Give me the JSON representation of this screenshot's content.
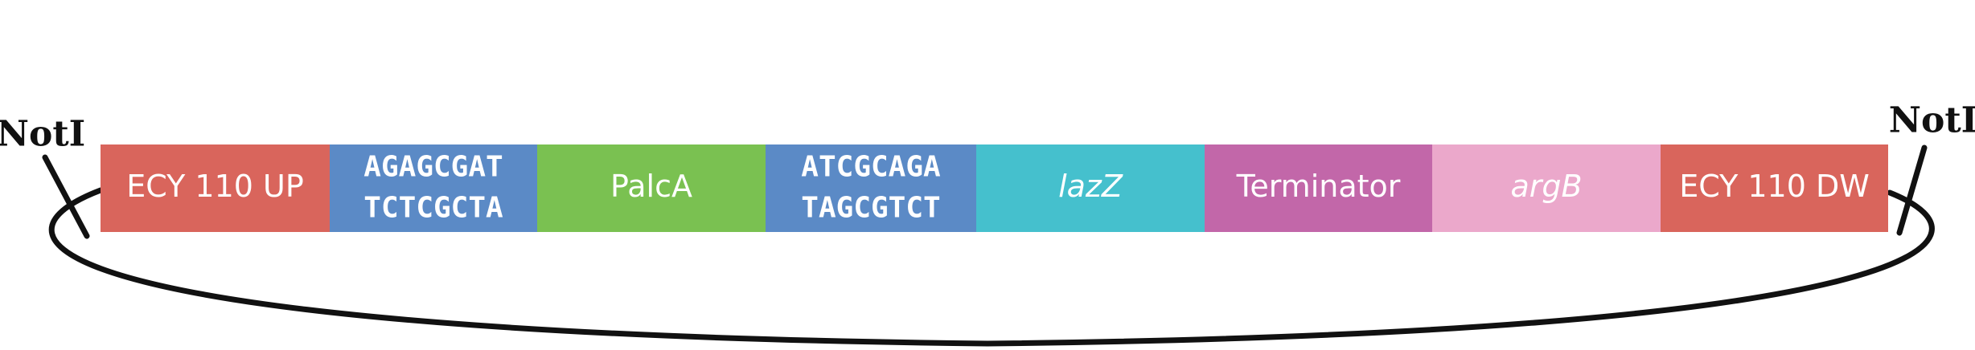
{
  "diagram": {
    "restriction_site_label": "NotI",
    "segments": [
      {
        "name": "ecy110-up",
        "label": "ECY 110 UP",
        "italic": false,
        "color": "#d9655c"
      },
      {
        "name": "linker-1",
        "lines": [
          "AGAGCGAT",
          "TCTCGCTA"
        ],
        "color": "#5b8ac6"
      },
      {
        "name": "palca",
        "label": "PalcA",
        "italic": false,
        "color": "#7ac151"
      },
      {
        "name": "linker-2",
        "lines": [
          "ATCGCAGA",
          "TAGCGTCT"
        ],
        "color": "#5b8ac6"
      },
      {
        "name": "lazz",
        "label": "lazZ",
        "italic": true,
        "color": "#45c0cd"
      },
      {
        "name": "terminator",
        "label": "Terminator",
        "italic": false,
        "color": "#c267a9"
      },
      {
        "name": "argb",
        "label": "argB",
        "italic": true,
        "color": "#eba8cb"
      },
      {
        "name": "ecy110-dw",
        "label": "ECY 110 DW",
        "italic": false,
        "color": "#d9655c"
      }
    ],
    "ring_color": "#111111"
  }
}
